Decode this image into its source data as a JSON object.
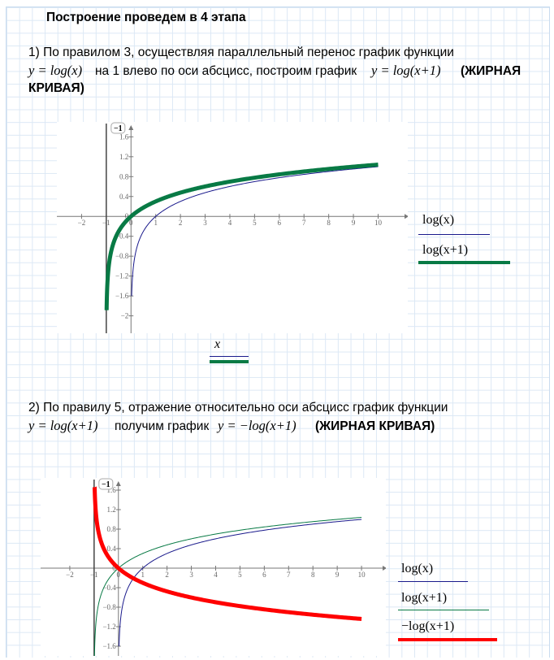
{
  "heading": "Построение проведем в 4 этапа",
  "step1": {
    "line1": "1) По правилом 3, осуществляя параллельный перенос график функции",
    "formula_a": "y = log(x)",
    "text_mid": "на 1 влево по оси абсцисс, построим график",
    "formula_b": "y = log(x+1)",
    "bold_note": "(ЖИРНАЯ",
    "bold_note2": "КРИВАЯ)"
  },
  "step2": {
    "line1": "2) По правилу 5, отражение относительно оси абсцисс график функции",
    "formula_a": "y = log(x+1)",
    "text_mid": "получим график",
    "formula_b": "y = −log(x+1)",
    "bold_note": "(ЖИРНАЯ КРИВАЯ)"
  },
  "chart_data": [
    {
      "type": "line",
      "marker_label": "−1",
      "xlim": [
        -3,
        11.2
      ],
      "ylim": [
        -2.35,
        1.9
      ],
      "x_ticks": [
        "-2",
        "-1",
        "0",
        "1",
        "2",
        "3",
        "4",
        "5",
        "6",
        "7",
        "8",
        "9",
        "10"
      ],
      "y_ticks": [
        "1.6",
        "1.2",
        "0.8",
        "0.4",
        "0",
        "-0.4",
        "-0.8",
        "-1.2",
        "-1.6",
        "-2"
      ],
      "vertical_marker_x": -1,
      "xlabel": "x",
      "series": [
        {
          "name": "log(x)",
          "expression": "log10(x)",
          "domain": [
            0.025,
            10
          ],
          "color": "#1a1a8c",
          "width": 1,
          "values_at": {
            "x": [
              0.025,
              0.5,
              1,
              2,
              5,
              10
            ],
            "y": [
              -1.6,
              -0.301,
              0,
              0.301,
              0.699,
              1
            ]
          }
        },
        {
          "name": "log(x+1)",
          "expression": "log10(x+1)",
          "domain": [
            -0.987,
            10
          ],
          "color": "#087a45",
          "width": 5,
          "values_at": {
            "x": [
              -0.987,
              -0.5,
              0,
              1,
              5,
              10
            ],
            "y": [
              -1.89,
              -0.301,
              0,
              0.301,
              0.778,
              1.041
            ]
          }
        }
      ]
    },
    {
      "type": "line",
      "marker_label": "−1",
      "xlim": [
        -3.2,
        11
      ],
      "ylim": [
        -1.8,
        1.85
      ],
      "x_ticks": [
        "-2",
        "-1",
        "0",
        "1",
        "2",
        "3",
        "4",
        "5",
        "6",
        "7",
        "8",
        "9",
        "10"
      ],
      "y_ticks": [
        "1.6",
        "1.2",
        "0.8",
        "0.4",
        "0",
        "-0.4",
        "-0.8",
        "-1.2",
        "-1.6"
      ],
      "vertical_marker_x": -1,
      "series": [
        {
          "name": "log(x)",
          "expression": "log10(x)",
          "domain": [
            0.025,
            10
          ],
          "color": "#1a1a8c",
          "width": 1,
          "values_at": {
            "x": [
              0.025,
              1,
              10
            ],
            "y": [
              -1.6,
              0,
              1
            ]
          }
        },
        {
          "name": "log(x+1)",
          "expression": "log10(x+1)",
          "domain": [
            -0.985,
            10
          ],
          "color": "#087a45",
          "width": 1,
          "values_at": {
            "x": [
              -0.985,
              0,
              10
            ],
            "y": [
              -1.82,
              0,
              1.041
            ]
          }
        },
        {
          "name": "−log(x+1)",
          "expression": "-log10(x+1)",
          "domain": [
            -0.978,
            10
          ],
          "color": "#ff0000",
          "width": 5,
          "values_at": {
            "x": [
              -0.978,
              0,
              10
            ],
            "y": [
              1.66,
              0,
              -1.041
            ]
          }
        }
      ]
    }
  ]
}
